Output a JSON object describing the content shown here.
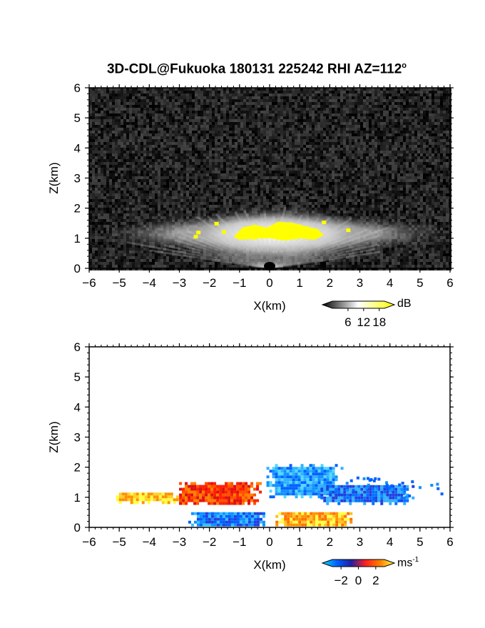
{
  "title": "3D-CDL@Fukuoka 180131 225242 RHI AZ=112",
  "title_degree": "o",
  "chart_data": [
    {
      "type": "heatmap",
      "title": "3D-CDL@Fukuoka 180131 225242 RHI AZ=112°",
      "xlabel": "X(km)",
      "ylabel": "Z(km)",
      "xlim": [
        -6,
        6
      ],
      "ylim": [
        0,
        6
      ],
      "x_ticks": [
        "-6",
        "-5",
        "-4",
        "-3",
        "-2",
        "-1",
        "0",
        "1",
        "2",
        "3",
        "4",
        "5",
        "6"
      ],
      "y_ticks": [
        "0",
        "1",
        "2",
        "3",
        "4",
        "5",
        "6"
      ],
      "colorbar": {
        "unit": "dB",
        "ticks": [
          "6",
          "12",
          "18"
        ],
        "range": [
          0,
          20
        ],
        "colors": [
          "#000000",
          "#ffffff",
          "#ffff00"
        ]
      },
      "background_color": "#111111",
      "description_values": {
        "echo_layer_top_km": 1.8,
        "yellow_core_x_km": [
          -1.2,
          1.8
        ],
        "yellow_core_z_km": [
          1.0,
          1.5
        ]
      }
    },
    {
      "type": "heatmap",
      "xlabel": "X(km)",
      "ylabel": "Z(km)",
      "xlim": [
        -6,
        6
      ],
      "ylim": [
        0,
        6
      ],
      "x_ticks": [
        "-6",
        "-5",
        "-4",
        "-3",
        "-2",
        "-1",
        "0",
        "1",
        "2",
        "3",
        "4",
        "5",
        "6"
      ],
      "y_ticks": [
        "0",
        "1",
        "2",
        "3",
        "4",
        "5",
        "6"
      ],
      "colorbar": {
        "unit": "ms",
        "unit_exp": "-1",
        "ticks": [
          "-2",
          "0",
          "2"
        ],
        "range": [
          -3,
          3
        ],
        "colors": [
          "#00e0ff",
          "#0060ff",
          "#2020a0",
          "#ff2020",
          "#ff8000",
          "#ffff40"
        ]
      },
      "description_values": {
        "max_height_km": 2.6,
        "x_extent_km": [
          -5.3,
          5.8
        ]
      }
    }
  ]
}
